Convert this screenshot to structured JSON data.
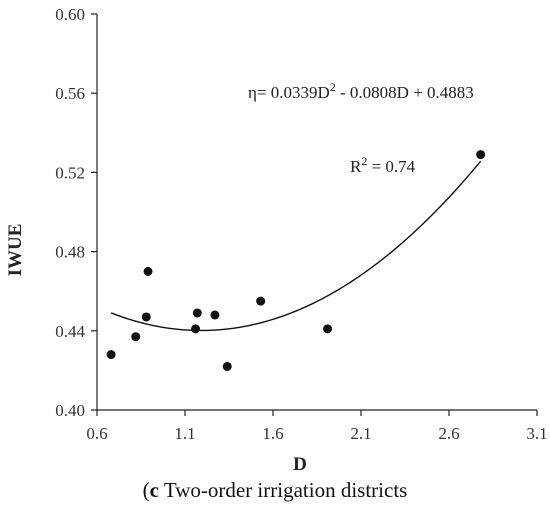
{
  "chart_data": {
    "type": "scatter",
    "xlabel": "D",
    "ylabel": "IWUE",
    "xlim": [
      0.6,
      3.1
    ],
    "ylim": [
      0.4,
      0.6
    ],
    "xticks": [
      "0.6",
      "1.1",
      "1.6",
      "2.1",
      "2.6",
      "3.1"
    ],
    "yticks": [
      "0.40",
      "0.44",
      "0.48",
      "0.52",
      "0.56",
      "0.60"
    ],
    "points": [
      {
        "x": 0.68,
        "y": 0.428
      },
      {
        "x": 0.82,
        "y": 0.437
      },
      {
        "x": 0.88,
        "y": 0.447
      },
      {
        "x": 0.89,
        "y": 0.47
      },
      {
        "x": 1.16,
        "y": 0.441
      },
      {
        "x": 1.17,
        "y": 0.449
      },
      {
        "x": 1.27,
        "y": 0.448
      },
      {
        "x": 1.34,
        "y": 0.422
      },
      {
        "x": 1.53,
        "y": 0.455
      },
      {
        "x": 1.91,
        "y": 0.441
      },
      {
        "x": 2.78,
        "y": 0.529
      }
    ],
    "trendline": {
      "type": "polynomial",
      "coefficients": [
        0.0339,
        -0.0808,
        0.4883
      ],
      "x_range": [
        0.68,
        2.78
      ]
    },
    "equation_label": {
      "prefix": "η= 0.0339D",
      "sup": "2",
      "suffix": " - 0.0808D + 0.4883"
    },
    "r2_label": {
      "prefix": "R",
      "sup": "2",
      "suffix": " = 0.74"
    },
    "colors": {
      "points": "#111111",
      "line": "#111111",
      "axis": "#222222"
    }
  },
  "caption": {
    "bold": "c",
    "text": " Two-order irrigation districts"
  }
}
